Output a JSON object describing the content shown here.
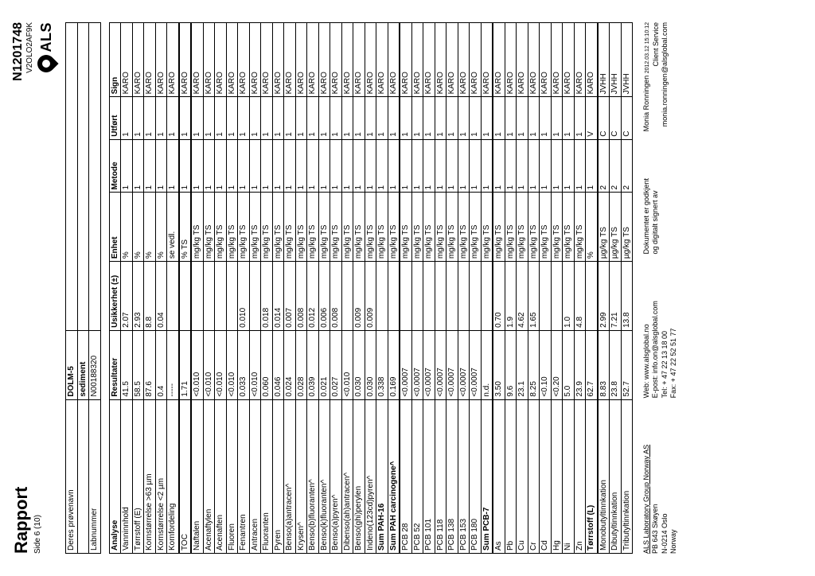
{
  "header": {
    "title": "Rapport",
    "page_label": "Side 6 (10)",
    "doc_number": "N1201748",
    "doc_sub": "V2OLO2AF9K",
    "logo_text": "ALS"
  },
  "sample": {
    "row1_label": "Deres prøvenavn",
    "row1_val": "DOLM-5",
    "row2_val": "sediment",
    "row3_label": "Labnummer",
    "row3_val": "N00188320"
  },
  "columns": {
    "c1": "Analyse",
    "c2": "Resultater",
    "c3": "Usikkerhet (±)",
    "c4": "Enhet",
    "c5": "Metode",
    "c6": "Utført",
    "c7": "Sign"
  },
  "rows": [
    {
      "a": "Vanninnhold",
      "r": "41.5",
      "u": "2.07",
      "e": "%",
      "m": "1",
      "f": "1",
      "s": "KARO"
    },
    {
      "a": "Tørrstoff (E)",
      "r": "58.5",
      "u": "2.93",
      "e": "%",
      "m": "1",
      "f": "1",
      "s": "KARO"
    },
    {
      "a": "Kornstørrelse >63 µm",
      "r": "87.6",
      "u": "8.8",
      "e": "%",
      "m": "1",
      "f": "1",
      "s": "KARO"
    },
    {
      "a": "Kornstørrelse <2 µm",
      "r": "0.4",
      "u": "0.04",
      "e": "%",
      "m": "1",
      "f": "1",
      "s": "KARO"
    },
    {
      "a": "Kornfordeling",
      "r": "-----",
      "u": "",
      "e": "se vedl.",
      "m": "1",
      "f": "1",
      "s": "KARO"
    },
    {
      "sec": true,
      "a": "TOC",
      "r": "1.71",
      "u": "",
      "e": "% TS",
      "m": "1",
      "f": "1",
      "s": "KARO"
    },
    {
      "sec": true,
      "a": "Naftalen",
      "r": "<0.010",
      "u": "",
      "e": "mg/kg TS",
      "m": "1",
      "f": "1",
      "s": "KARO"
    },
    {
      "a": "Acenaftylen",
      "r": "<0.010",
      "u": "",
      "e": "mg/kg TS",
      "m": "1",
      "f": "1",
      "s": "KARO"
    },
    {
      "a": "Acenaften",
      "r": "<0.010",
      "u": "",
      "e": "mg/kg TS",
      "m": "1",
      "f": "1",
      "s": "KARO"
    },
    {
      "a": "Fluoren",
      "r": "<0.010",
      "u": "",
      "e": "mg/kg TS",
      "m": "1",
      "f": "1",
      "s": "KARO"
    },
    {
      "a": "Fenantren",
      "r": "0.033",
      "u": "0.010",
      "e": "mg/kg TS",
      "m": "1",
      "f": "1",
      "s": "KARO"
    },
    {
      "a": "Antracen",
      "r": "<0.010",
      "u": "",
      "e": "mg/kg TS",
      "m": "1",
      "f": "1",
      "s": "KARO"
    },
    {
      "a": "Fluoranten",
      "r": "0.060",
      "u": "0.018",
      "e": "mg/kg TS",
      "m": "1",
      "f": "1",
      "s": "KARO"
    },
    {
      "a": "Pyren",
      "r": "0.046",
      "u": "0.014",
      "e": "mg/kg TS",
      "m": "1",
      "f": "1",
      "s": "KARO"
    },
    {
      "a": "Benso(a)antracen^",
      "r": "0.024",
      "u": "0.007",
      "e": "mg/kg TS",
      "m": "1",
      "f": "1",
      "s": "KARO"
    },
    {
      "a": "Krysen^",
      "r": "0.028",
      "u": "0.008",
      "e": "mg/kg TS",
      "m": "1",
      "f": "1",
      "s": "KARO"
    },
    {
      "a": "Benso(b)fluoranten^",
      "r": "0.039",
      "u": "0.012",
      "e": "mg/kg TS",
      "m": "1",
      "f": "1",
      "s": "KARO"
    },
    {
      "a": "Benso(k)fluoranten^",
      "r": "0.021",
      "u": "0.006",
      "e": "mg/kg TS",
      "m": "1",
      "f": "1",
      "s": "KARO"
    },
    {
      "a": "Benso(a)pyren^",
      "r": "0.027",
      "u": "0.008",
      "e": "mg/kg TS",
      "m": "1",
      "f": "1",
      "s": "KARO"
    },
    {
      "a": "Dibenso(ah)antracen^",
      "r": "<0.010",
      "u": "",
      "e": "mg/kg TS",
      "m": "1",
      "f": "1",
      "s": "KARO"
    },
    {
      "a": "Benso(ghi)perylen",
      "r": "0.030",
      "u": "0.009",
      "e": "mg/kg TS",
      "m": "1",
      "f": "1",
      "s": "KARO"
    },
    {
      "a": "Indeno(123cd)pyren^",
      "r": "0.030",
      "u": "0.009",
      "e": "mg/kg TS",
      "m": "1",
      "f": "1",
      "s": "KARO"
    },
    {
      "a": "Sum PAH-16",
      "r": "0.338",
      "u": "",
      "e": "mg/kg TS",
      "m": "1",
      "f": "1",
      "s": "KARO"
    },
    {
      "a": "Sum PAH carcinogene^",
      "r": "0.169",
      "u": "",
      "e": "mg/kg TS",
      "m": "1",
      "f": "1",
      "s": "KARO"
    },
    {
      "sec": true,
      "a": "PCB 28",
      "r": "<0.0007",
      "u": "",
      "e": "mg/kg TS",
      "m": "1",
      "f": "1",
      "s": "KARO"
    },
    {
      "a": "PCB 52",
      "r": "<0.0007",
      "u": "",
      "e": "mg/kg TS",
      "m": "1",
      "f": "1",
      "s": "KARO"
    },
    {
      "a": "PCB 101",
      "r": "<0.0007",
      "u": "",
      "e": "mg/kg TS",
      "m": "1",
      "f": "1",
      "s": "KARO"
    },
    {
      "a": "PCB 118",
      "r": "<0.0007",
      "u": "",
      "e": "mg/kg TS",
      "m": "1",
      "f": "1",
      "s": "KARO"
    },
    {
      "a": "PCB 138",
      "r": "<0.0007",
      "u": "",
      "e": "mg/kg TS",
      "m": "1",
      "f": "1",
      "s": "KARO"
    },
    {
      "a": "PCB 153",
      "r": "<0.0007",
      "u": "",
      "e": "mg/kg TS",
      "m": "1",
      "f": "1",
      "s": "KARO"
    },
    {
      "a": "PCB 180",
      "r": "<0.0007",
      "u": "",
      "e": "mg/kg TS",
      "m": "1",
      "f": "1",
      "s": "KARO"
    },
    {
      "a": "Sum PCB-7",
      "r": "n.d.",
      "u": "",
      "e": "mg/kg TS",
      "m": "1",
      "f": "1",
      "s": "KARO"
    },
    {
      "sec": true,
      "a": "As",
      "r": "3.50",
      "u": "0.70",
      "e": "mg/kg TS",
      "m": "1",
      "f": "1",
      "s": "KARO"
    },
    {
      "a": "Pb",
      "r": "9.6",
      "u": "1.9",
      "e": "mg/kg TS",
      "m": "1",
      "f": "1",
      "s": "KARO"
    },
    {
      "a": "Cu",
      "r": "23.1",
      "u": "4.62",
      "e": "mg/kg TS",
      "m": "1",
      "f": "1",
      "s": "KARO"
    },
    {
      "a": "Cr",
      "r": "8.25",
      "u": "1.65",
      "e": "mg/kg TS",
      "m": "1",
      "f": "1",
      "s": "KARO"
    },
    {
      "a": "Cd",
      "r": "<0.10",
      "u": "",
      "e": "mg/kg TS",
      "m": "1",
      "f": "1",
      "s": "KARO"
    },
    {
      "a": "Hg",
      "r": "<0.20",
      "u": "",
      "e": "mg/kg TS",
      "m": "1",
      "f": "1",
      "s": "KARO"
    },
    {
      "a": "Ni",
      "r": "5.0",
      "u": "1.0",
      "e": "mg/kg TS",
      "m": "1",
      "f": "1",
      "s": "KARO"
    },
    {
      "a": "Zn",
      "r": "23.9",
      "u": "4.8",
      "e": "mg/kg TS",
      "m": "1",
      "f": "1",
      "s": "KARO"
    },
    {
      "a": "Tørrstoff (L)",
      "r": "62.7",
      "u": "",
      "e": "%",
      "m": "1",
      "f": "V",
      "s": "KARO"
    },
    {
      "sec": true,
      "a": "Monobutyltinnkation",
      "r": "8.83",
      "u": "2.99",
      "e": "µg/kg TS",
      "m": "2",
      "f": "C",
      "s": "JVHH"
    },
    {
      "a": "Dibutyltinnkation",
      "r": "23.8",
      "u": "7.21",
      "e": "µg/kg TS",
      "m": "2",
      "f": "C",
      "s": "JVHH"
    },
    {
      "a": "Tributyltinnkation",
      "r": "52.7",
      "u": "13.8",
      "e": "µg/kg TS",
      "m": "2",
      "f": "C",
      "s": "JVHH"
    }
  ],
  "footer": {
    "left": {
      "l1": "ALS Laboratory Group Norway AS",
      "l2": "PB 643 Skøyen",
      "l3": "N-0214 Oslo",
      "l4": "Norway"
    },
    "mid": {
      "l1": "Web: www.alsglobal.no",
      "l2": "E-post: info.on@alsglobal.com",
      "l3": "Tel: + 47 22 13 18 00",
      "l4": "Fax: + 47 22 52 51 77"
    },
    "sign": {
      "l1": "Dokumentet er godkjent",
      "l2": "og digitalt signert av"
    },
    "right": {
      "l1": "Monia Ronningen",
      "l1b": "2012.03.12 15:10:12",
      "l2": "Client Service",
      "l3": "monia.ronningen@alsglobal.com"
    }
  }
}
